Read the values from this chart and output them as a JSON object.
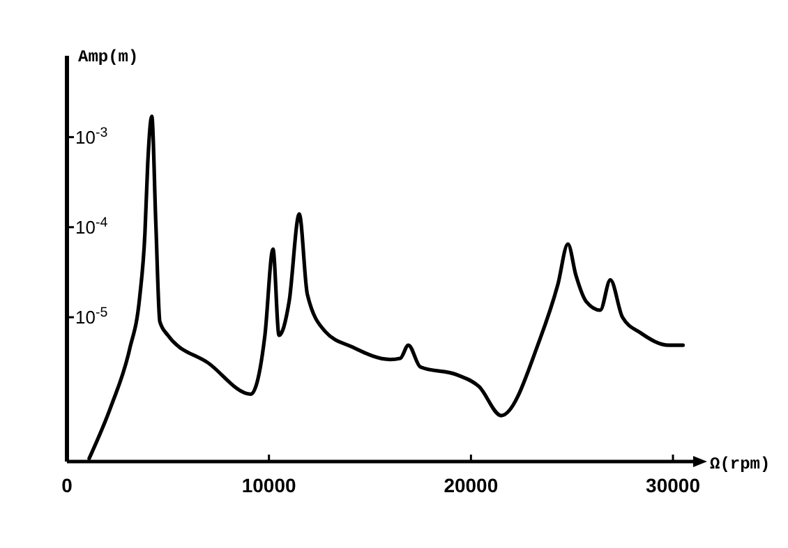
{
  "chart_data": {
    "type": "line",
    "xlabel": "Ω(rpm)",
    "ylabel": "Amp(m)",
    "log": "y",
    "grid": false,
    "marker": "none",
    "line_style": "solid",
    "color": "#000000",
    "x": [
      1100,
      2200,
      3100,
      3600,
      3860,
      4000,
      4200,
      4400,
      4600,
      5000,
      7000,
      9100,
      9800,
      10200,
      10500,
      11000,
      11500,
      11900,
      12800,
      14100,
      16000,
      16500,
      16900,
      17500,
      19300,
      20400,
      21500,
      23400,
      24300,
      24800,
      25200,
      25700,
      26400,
      26900,
      27500,
      28400,
      29800,
      30500
    ],
    "values": [
      2.7e-07,
      1.05e-06,
      4.4e-06,
      1.66e-05,
      8.5e-05,
      0.00051,
      0.0017,
      0.00011,
      8.9e-06,
      6.3e-06,
      3.1e-06,
      1.4e-06,
      6.3e-06,
      5.7e-05,
      6.3e-06,
      1.5e-05,
      0.00014,
      1.8e-05,
      6.9e-06,
      4.7e-06,
      3.4e-06,
      3.5e-06,
      4.9e-06,
      2.8e-06,
      2.3e-06,
      1.7e-06,
      8.1e-07,
      5.6e-06,
      2.3e-05,
      6.5e-05,
      2.9e-05,
      1.5e-05,
      1.2e-05,
      2.6e-05,
      1e-05,
      6.7e-06,
      4.9e-06,
      4.9e-06
    ],
    "xlim": [
      0,
      31000
    ],
    "xticks": [
      0,
      10000,
      20000,
      30000
    ],
    "ylim": [
      2.5e-07,
      0.008
    ],
    "yticks": [
      {
        "value": 0.001,
        "label": "10$^{-3}$"
      },
      {
        "value": 0.0001,
        "label": "10$^{-4}$"
      },
      {
        "value": 1e-05,
        "label": "10$^{-5}$"
      }
    ]
  }
}
